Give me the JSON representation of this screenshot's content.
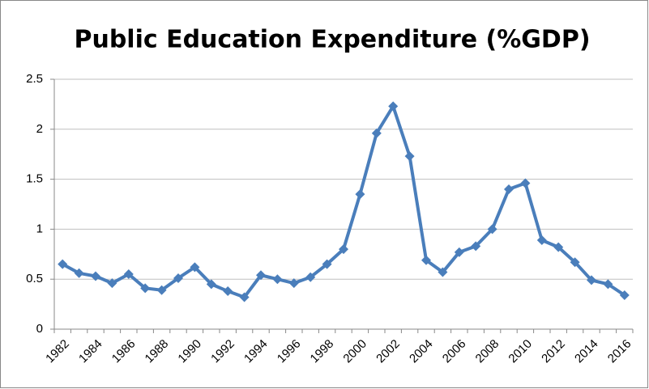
{
  "chart_data": {
    "type": "line",
    "title": "Public Education Expenditure (%GDP)",
    "categories": [
      "1982",
      null,
      "1984",
      null,
      "1986",
      null,
      "1988",
      null,
      "1990",
      null,
      "1992",
      null,
      "1994",
      null,
      "1996",
      null,
      "1998",
      null,
      "2000",
      null,
      "2002",
      null,
      "2004",
      null,
      "2006",
      null,
      "2008",
      null,
      "2010",
      null,
      "2012",
      null,
      "2014",
      null,
      "2016"
    ],
    "values": [
      0.65,
      0.56,
      0.53,
      0.46,
      0.55,
      0.41,
      0.39,
      0.51,
      0.62,
      0.45,
      0.38,
      0.32,
      0.54,
      0.5,
      0.46,
      0.52,
      0.65,
      0.8,
      1.35,
      1.96,
      2.23,
      1.73,
      0.69,
      0.57,
      0.77,
      0.83,
      1.0,
      1.4,
      1.46,
      0.89,
      0.82,
      0.67,
      0.49,
      0.45,
      0.34
    ],
    "color": "#4a7ebb",
    "ylim": [
      0,
      2.5
    ],
    "yticks": [
      0,
      0.5,
      1,
      1.5,
      2,
      2.5
    ],
    "grid": true
  }
}
